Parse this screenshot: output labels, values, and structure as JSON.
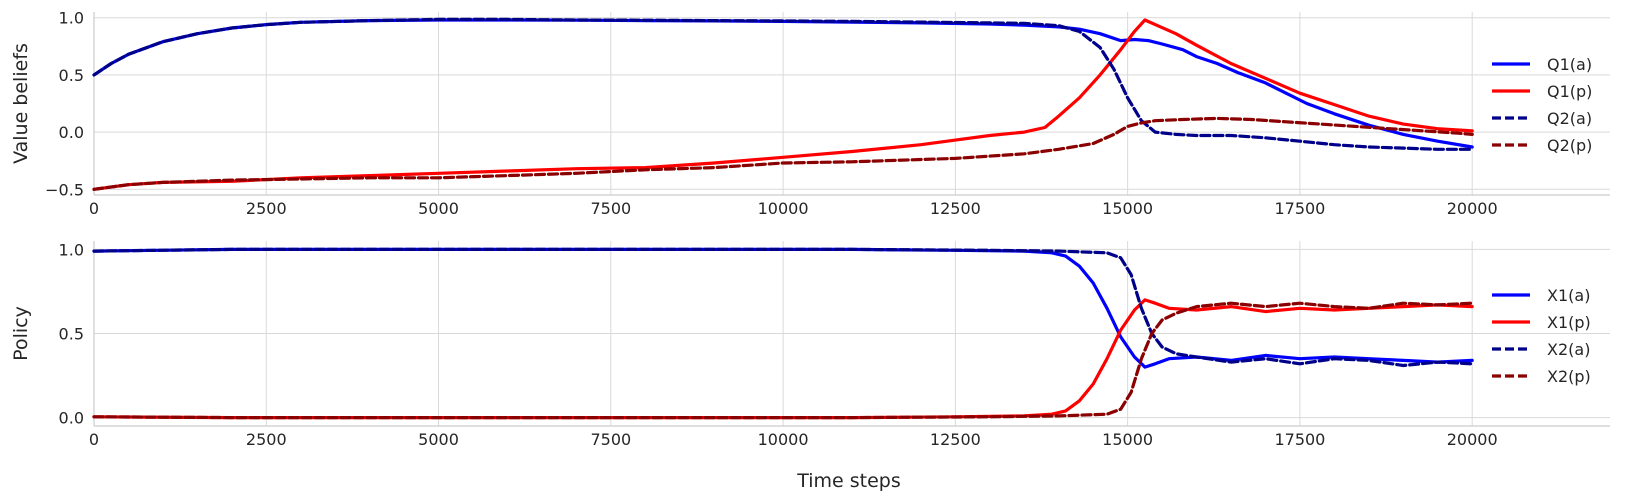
{
  "chart_data": [
    {
      "type": "line",
      "ylabel": "Value beliefs",
      "xlabel": "",
      "xlim": [
        0,
        22000
      ],
      "ylim": [
        -0.55,
        1.05
      ],
      "xticks": [
        0,
        2500,
        5000,
        7500,
        10000,
        12500,
        15000,
        17500,
        20000
      ],
      "xtick_labels": [
        "0",
        "2500",
        "5000",
        "7500",
        "10000",
        "12500",
        "15000",
        "17500",
        "20000"
      ],
      "yticks": [
        -0.5,
        0.0,
        0.5,
        1.0
      ],
      "ytick_labels": [
        "−0.5",
        "0.0",
        "0.5",
        "1.0"
      ],
      "grid": true,
      "legend_position": "right",
      "series": [
        {
          "name": "Q1(a)",
          "color": "#0000ff",
          "style": "solid",
          "x": [
            0,
            250,
            500,
            1000,
            1500,
            2000,
            2500,
            3000,
            4000,
            5000,
            6000,
            7000,
            8000,
            9000,
            10000,
            11000,
            12000,
            13000,
            13500,
            14000,
            14300,
            14600,
            14900,
            15100,
            15300,
            15500,
            15800,
            16000,
            16300,
            16600,
            17000,
            17300,
            17600,
            18000,
            18500,
            19000,
            19500,
            20000
          ],
          "y": [
            0.5,
            0.6,
            0.68,
            0.79,
            0.86,
            0.91,
            0.94,
            0.96,
            0.975,
            0.98,
            0.98,
            0.978,
            0.975,
            0.972,
            0.968,
            0.962,
            0.955,
            0.945,
            0.935,
            0.92,
            0.9,
            0.86,
            0.8,
            0.81,
            0.8,
            0.77,
            0.72,
            0.66,
            0.6,
            0.52,
            0.43,
            0.34,
            0.25,
            0.16,
            0.06,
            -0.02,
            -0.08,
            -0.13
          ]
        },
        {
          "name": "Q1(p)",
          "color": "#ff0000",
          "style": "solid",
          "x": [
            0,
            500,
            1000,
            2000,
            3000,
            4000,
            5000,
            6000,
            7000,
            8000,
            9000,
            10000,
            11000,
            12000,
            12500,
            13000,
            13500,
            13800,
            14000,
            14300,
            14600,
            14900,
            15100,
            15250,
            15400,
            15700,
            16000,
            16500,
            17000,
            17500,
            18000,
            18500,
            19000,
            19500,
            20000
          ],
          "y": [
            -0.5,
            -0.46,
            -0.44,
            -0.43,
            -0.4,
            -0.38,
            -0.36,
            -0.34,
            -0.32,
            -0.31,
            -0.27,
            -0.22,
            -0.17,
            -0.11,
            -0.07,
            -0.03,
            0.0,
            0.04,
            0.14,
            0.3,
            0.5,
            0.72,
            0.88,
            0.98,
            0.94,
            0.86,
            0.76,
            0.6,
            0.47,
            0.34,
            0.24,
            0.14,
            0.07,
            0.03,
            0.01
          ]
        },
        {
          "name": "Q2(a)",
          "color": "#00008b",
          "style": "dashed",
          "x": [
            0,
            250,
            500,
            1000,
            1500,
            2000,
            2500,
            3000,
            4000,
            5000,
            6000,
            7000,
            8000,
            9000,
            10000,
            11000,
            12000,
            13000,
            13500,
            14000,
            14300,
            14600,
            14800,
            15000,
            15200,
            15400,
            15700,
            16000,
            16500,
            17000,
            17500,
            18000,
            18500,
            19000,
            19500,
            20000
          ],
          "y": [
            0.5,
            0.6,
            0.68,
            0.79,
            0.86,
            0.91,
            0.94,
            0.96,
            0.975,
            0.985,
            0.985,
            0.98,
            0.978,
            0.975,
            0.972,
            0.968,
            0.962,
            0.955,
            0.95,
            0.93,
            0.88,
            0.74,
            0.55,
            0.3,
            0.1,
            0.0,
            -0.02,
            -0.03,
            -0.03,
            -0.05,
            -0.08,
            -0.11,
            -0.13,
            -0.14,
            -0.15,
            -0.15
          ]
        },
        {
          "name": "Q2(p)",
          "color": "#8b0000",
          "style": "dashed",
          "x": [
            0,
            500,
            1000,
            2000,
            3000,
            4000,
            5000,
            6000,
            7000,
            8000,
            9000,
            10000,
            11000,
            12000,
            12500,
            13000,
            13500,
            14000,
            14500,
            14800,
            15000,
            15200,
            15400,
            15800,
            16300,
            16800,
            17300,
            17800,
            18300,
            18800,
            19300,
            19800,
            20000
          ],
          "y": [
            -0.5,
            -0.46,
            -0.44,
            -0.42,
            -0.41,
            -0.4,
            -0.4,
            -0.38,
            -0.36,
            -0.33,
            -0.31,
            -0.27,
            -0.26,
            -0.24,
            -0.23,
            -0.21,
            -0.19,
            -0.15,
            -0.1,
            -0.02,
            0.05,
            0.08,
            0.1,
            0.11,
            0.12,
            0.11,
            0.09,
            0.07,
            0.05,
            0.03,
            0.01,
            -0.01,
            -0.02
          ]
        }
      ]
    },
    {
      "type": "line",
      "ylabel": "Policy",
      "xlabel": "Time steps",
      "xlim": [
        0,
        22000
      ],
      "ylim": [
        -0.05,
        1.05
      ],
      "xticks": [
        0,
        2500,
        5000,
        7500,
        10000,
        12500,
        15000,
        17500,
        20000
      ],
      "xtick_labels": [
        "0",
        "2500",
        "5000",
        "7500",
        "10000",
        "12500",
        "15000",
        "17500",
        "20000"
      ],
      "yticks": [
        0.0,
        0.5,
        1.0
      ],
      "ytick_labels": [
        "0.0",
        "0.5",
        "1.0"
      ],
      "grid": true,
      "legend_position": "right",
      "series": [
        {
          "name": "X1(a)",
          "color": "#0000ff",
          "style": "solid",
          "x": [
            0,
            2000,
            5000,
            8000,
            11000,
            12500,
            13500,
            13900,
            14100,
            14300,
            14500,
            14700,
            14900,
            15100,
            15250,
            15400,
            15600,
            16000,
            16500,
            17000,
            17500,
            18000,
            18500,
            19000,
            19500,
            20000
          ],
          "y": [
            0.99,
            1.0,
            1.0,
            1.0,
            1.0,
            0.995,
            0.99,
            0.98,
            0.96,
            0.9,
            0.8,
            0.65,
            0.48,
            0.36,
            0.3,
            0.32,
            0.35,
            0.36,
            0.34,
            0.37,
            0.35,
            0.36,
            0.35,
            0.34,
            0.33,
            0.34
          ]
        },
        {
          "name": "X1(p)",
          "color": "#ff0000",
          "style": "solid",
          "x": [
            0,
            2000,
            5000,
            8000,
            11000,
            12500,
            13500,
            13900,
            14100,
            14300,
            14500,
            14700,
            14900,
            15100,
            15250,
            15400,
            15600,
            16000,
            16500,
            17000,
            17500,
            18000,
            18500,
            19000,
            19500,
            20000
          ],
          "y": [
            0.005,
            0.0,
            0.0,
            0.0,
            0.0,
            0.005,
            0.01,
            0.02,
            0.04,
            0.1,
            0.2,
            0.35,
            0.52,
            0.64,
            0.7,
            0.68,
            0.65,
            0.64,
            0.66,
            0.63,
            0.65,
            0.64,
            0.65,
            0.66,
            0.67,
            0.66
          ]
        },
        {
          "name": "X2(a)",
          "color": "#00008b",
          "style": "dashed",
          "x": [
            0,
            2000,
            5000,
            8000,
            11000,
            13000,
            14000,
            14700,
            14900,
            15050,
            15200,
            15350,
            15500,
            15700,
            16000,
            16500,
            17000,
            17500,
            18000,
            18500,
            19000,
            19500,
            20000
          ],
          "y": [
            0.99,
            1.0,
            1.0,
            1.0,
            1.0,
            0.995,
            0.99,
            0.98,
            0.95,
            0.85,
            0.65,
            0.5,
            0.42,
            0.38,
            0.36,
            0.33,
            0.35,
            0.32,
            0.35,
            0.34,
            0.31,
            0.33,
            0.32
          ]
        },
        {
          "name": "X2(p)",
          "color": "#8b0000",
          "style": "dashed",
          "x": [
            0,
            2000,
            5000,
            8000,
            11000,
            13000,
            14000,
            14700,
            14900,
            15050,
            15200,
            15350,
            15500,
            15700,
            16000,
            16500,
            17000,
            17500,
            18000,
            18500,
            19000,
            19500,
            20000
          ],
          "y": [
            0.005,
            0.0,
            0.0,
            0.0,
            0.0,
            0.005,
            0.01,
            0.02,
            0.05,
            0.15,
            0.35,
            0.5,
            0.58,
            0.62,
            0.66,
            0.68,
            0.66,
            0.68,
            0.66,
            0.65,
            0.68,
            0.67,
            0.68
          ]
        }
      ]
    }
  ]
}
